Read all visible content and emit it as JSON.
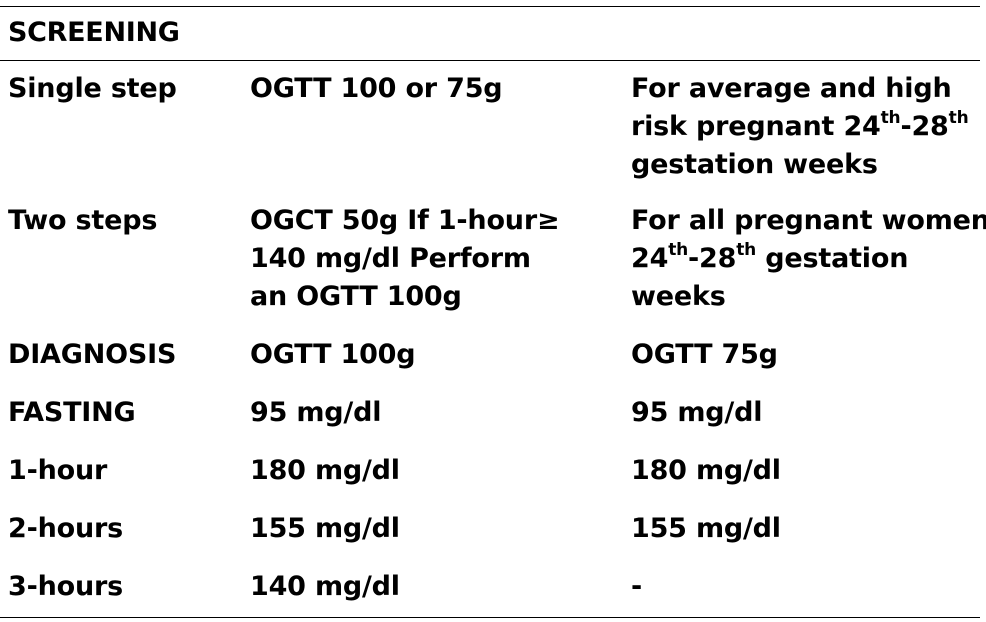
{
  "section_title": "SCREENING",
  "rows": [
    {
      "label": "Single step",
      "col2": [
        "OGTT 100 or 75g"
      ],
      "col3": {
        "line1": "For average and high",
        "line2_pre": "risk pregnant 24",
        "line2_sup1": "th",
        "line2_mid": "-28",
        "line2_sup2": "th",
        "line3": "gestation weeks"
      }
    },
    {
      "label": "Two steps",
      "col2": [
        "OGCT 50g If 1-hour≥",
        "140 mg/dl Perform",
        "an OGTT 100g"
      ],
      "col3": {
        "line1": "For all pregnant women",
        "line2_pre": "24",
        "line2_sup1": "th",
        "line2_mid": "-28",
        "line2_sup2": "th",
        "line2_post": " gestation",
        "line3": "weeks"
      }
    },
    {
      "label": "DIAGNOSIS",
      "col2": "OGTT 100g",
      "col3": "OGTT 75g"
    },
    {
      "label": "FASTING",
      "col2": "95 mg/dl",
      "col3": "95 mg/dl"
    },
    {
      "label": "1-hour",
      "col2": "180 mg/dl",
      "col3": "180 mg/dl"
    },
    {
      "label": "2-hours",
      "col2": "155 mg/dl",
      "col3": "155 mg/dl"
    },
    {
      "label": "3-hours",
      "col2": "140 mg/dl",
      "col3": "-"
    }
  ]
}
